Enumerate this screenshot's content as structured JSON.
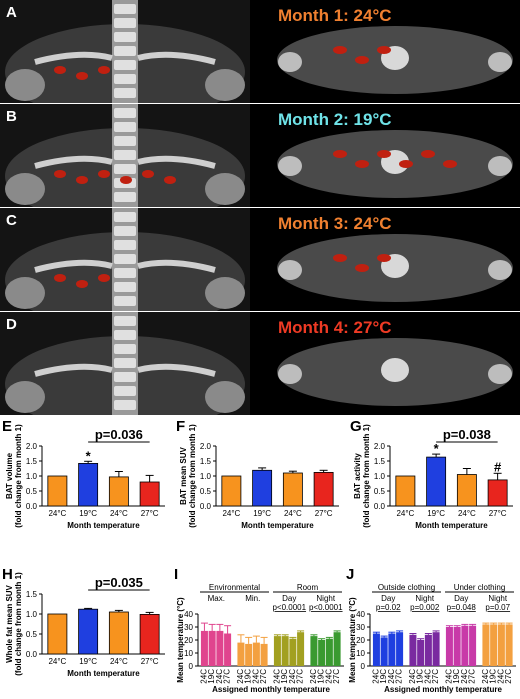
{
  "ct_rows": [
    {
      "letter": "A",
      "month": "Month 1: 24°C",
      "color": "#f08030"
    },
    {
      "letter": "B",
      "month": "Month 2: 19°C",
      "color": "#6fe3e8"
    },
    {
      "letter": "C",
      "month": "Month 3: 24°C",
      "color": "#f08030"
    },
    {
      "letter": "D",
      "month": "Month 4: 27°C",
      "color": "#ee3a24"
    }
  ],
  "colors": {
    "orange": "#f7931e",
    "blue": "#1f3fe0",
    "red": "#e8251e",
    "pink": "#e0458e",
    "olive": "#a2a020",
    "green": "#3a9a30",
    "purple": "#7a2aa0",
    "magenta": "#c83aa8",
    "lightorange": "#f3a040"
  },
  "chart_data": [
    {
      "id": "E",
      "type": "bar",
      "categories": [
        "24°C",
        "19°C",
        "24°C",
        "27°C"
      ],
      "values": [
        1.0,
        1.42,
        0.97,
        0.8
      ],
      "errors": [
        0,
        0.07,
        0.18,
        0.22
      ],
      "ylabel": "BAT volume\n(fold change from month 1)",
      "xlabel": "Month temperature",
      "ylim": [
        0,
        2.0
      ],
      "yticks": [
        "0.0",
        "0.5",
        "1.0",
        "1.5",
        "2.0"
      ],
      "annotation": "p=0.036",
      "star": "*"
    },
    {
      "id": "F",
      "type": "bar",
      "categories": [
        "24°C",
        "19°C",
        "24°C",
        "27°C"
      ],
      "values": [
        1.0,
        1.19,
        1.1,
        1.12
      ],
      "errors": [
        0,
        0.08,
        0.06,
        0.07
      ],
      "ylabel": "BAT mean SUV\n(fold change from month 1)",
      "xlabel": "Month temperature",
      "ylim": [
        0,
        2.0
      ],
      "yticks": [
        "0.0",
        "0.5",
        "1.0",
        "1.5",
        "2.0"
      ]
    },
    {
      "id": "G",
      "type": "bar",
      "categories": [
        "24°C",
        "19°C",
        "24°C",
        "27°C"
      ],
      "values": [
        1.0,
        1.63,
        1.05,
        0.87
      ],
      "errors": [
        0,
        0.1,
        0.2,
        0.22
      ],
      "ylabel": "BAT activity\n(fold change from month 1)",
      "xlabel": "Month temperature",
      "ylim": [
        0,
        2.0
      ],
      "yticks": [
        "0.0",
        "0.5",
        "1.0",
        "1.5",
        "2.0"
      ],
      "annotation": "p=0.038",
      "star": "*",
      "hash": "#"
    },
    {
      "id": "H",
      "type": "bar",
      "categories": [
        "24°C",
        "19°C",
        "24°C",
        "27°C"
      ],
      "values": [
        1.0,
        1.12,
        1.05,
        0.99
      ],
      "errors": [
        0,
        0.02,
        0.04,
        0.05
      ],
      "ylabel": "Whole fat mean SUV\n(fold change from month 1)",
      "xlabel": "Month temperature",
      "ylim": [
        0,
        1.5
      ],
      "yticks": [
        "0.0",
        "0.5",
        "1.0",
        "1.5"
      ],
      "annotation": "p=0.035"
    },
    {
      "id": "I",
      "type": "bar",
      "ylabel": "Mean temperature (°C)",
      "xlabel": "Assigned monthly temperature",
      "ylim": [
        0,
        40
      ],
      "yticks": [
        "0",
        "10",
        "20",
        "30",
        "40"
      ],
      "groups": [
        {
          "header": "Environmental",
          "sub": [
            "Max.",
            "Min."
          ]
        },
        {
          "header": "Room",
          "sub": [
            "Day",
            "Night"
          ],
          "pvals": [
            "p<0.0001",
            "p<0.0001"
          ]
        }
      ],
      "clusters": [
        {
          "name": "Max.",
          "values": [
            27,
            27,
            27,
            25
          ],
          "errors": [
            6,
            5,
            5,
            6
          ],
          "color": "#e0458e"
        },
        {
          "name": "Min.",
          "values": [
            18,
            17,
            18,
            17
          ],
          "errors": [
            6,
            5,
            5,
            5
          ],
          "color": "#f3a040"
        },
        {
          "name": "Day",
          "values": [
            23,
            23,
            21,
            26
          ],
          "errors": [
            1,
            1,
            1,
            1
          ],
          "color": "#a2a020"
        },
        {
          "name": "Night",
          "values": [
            23,
            20,
            21,
            26
          ],
          "errors": [
            1,
            1,
            1,
            1
          ],
          "color": "#3a9a30"
        }
      ],
      "xticks": [
        "24C",
        "19C",
        "24C",
        "27C"
      ]
    },
    {
      "id": "J",
      "type": "bar",
      "ylabel": "Mean temperature (°C)",
      "xlabel": "Assigned monthly temperature",
      "ylim": [
        0,
        40
      ],
      "yticks": [
        "0",
        "10",
        "20",
        "30",
        "40"
      ],
      "groups": [
        {
          "header": "Outside clothing",
          "sub": [
            "Day",
            "Night"
          ],
          "pvals": [
            "p=0.02",
            "p=0.002"
          ]
        },
        {
          "header": "Under clothing",
          "sub": [
            "Day",
            "Night"
          ],
          "pvals": [
            "p=0.048",
            "p=0.07"
          ]
        }
      ],
      "clusters": [
        {
          "name": "Day",
          "values": [
            25,
            22,
            25,
            26
          ],
          "errors": [
            1,
            1,
            1,
            1
          ],
          "color": "#1f3fe0"
        },
        {
          "name": "Night",
          "values": [
            24,
            20,
            24,
            26
          ],
          "errors": [
            1,
            1,
            1,
            1
          ],
          "color": "#7a2aa0"
        },
        {
          "name": "Day",
          "values": [
            30,
            30,
            31,
            31
          ],
          "errors": [
            1,
            1,
            1,
            1
          ],
          "color": "#c83aa8"
        },
        {
          "name": "Night",
          "values": [
            32,
            32,
            32,
            32
          ],
          "errors": [
            1,
            1,
            1,
            1
          ],
          "color": "#f3a040"
        }
      ],
      "xticks": [
        "24C",
        "19C",
        "24C",
        "27C"
      ]
    }
  ]
}
